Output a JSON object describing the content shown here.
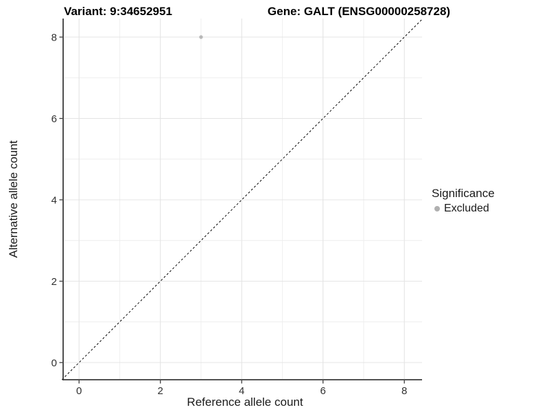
{
  "figure": {
    "title_left": "Variant: 9:34652951",
    "title_right": "Gene: GALT (ENSG00000258728)"
  },
  "chart_data": {
    "type": "scatter",
    "title": "Variant: 9:34652951   Gene: GALT (ENSG00000258728)",
    "xlabel": "Reference allele count",
    "ylabel": "Alternative allele count",
    "x_ticks": [
      0,
      2,
      4,
      6,
      8
    ],
    "y_ticks": [
      0,
      2,
      4,
      6,
      8
    ],
    "minor_ticks": [
      1,
      3,
      5,
      7
    ],
    "xlim": [
      -0.42,
      8.44
    ],
    "ylim": [
      -0.42,
      8.44
    ],
    "grid": true,
    "points": [
      {
        "x": 3,
        "y": 8,
        "series": "Excluded"
      }
    ],
    "reference_line": {
      "type": "identity y=x",
      "style": "dashed",
      "color": "#000000"
    },
    "legend": {
      "title": "Significance",
      "position": "right",
      "items": [
        {
          "label": "Excluded",
          "color": "#b0b0b0",
          "marker": "circle"
        }
      ]
    },
    "colors": {
      "point": "#b9b9b9",
      "grid_major": "#e4e4e4",
      "grid_minor": "#eeeeee",
      "axis": "#3a3a3a",
      "tick_text": "#303030"
    }
  }
}
